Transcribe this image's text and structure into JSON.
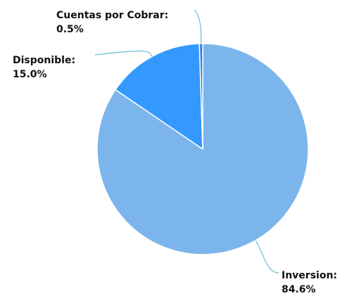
{
  "chart_data": {
    "type": "pie",
    "title": "",
    "slices": [
      {
        "name": "Inversion",
        "label": "Inversion:",
        "value": 84.6,
        "percent_text": "84.6%",
        "color": "#7cb5ec"
      },
      {
        "name": "Disponible",
        "label": "Disponible:",
        "value": 15.0,
        "percent_text": "15.0%",
        "color": "#3399ff"
      },
      {
        "name": "Cuentas por Cobrar",
        "label": "Cuentas por Cobrar:",
        "value": 0.5,
        "percent_text": "0.5%",
        "color": "#2f7ed8"
      }
    ],
    "connector_color": "#6bbad6",
    "slice_border_color": "#ffffff"
  }
}
